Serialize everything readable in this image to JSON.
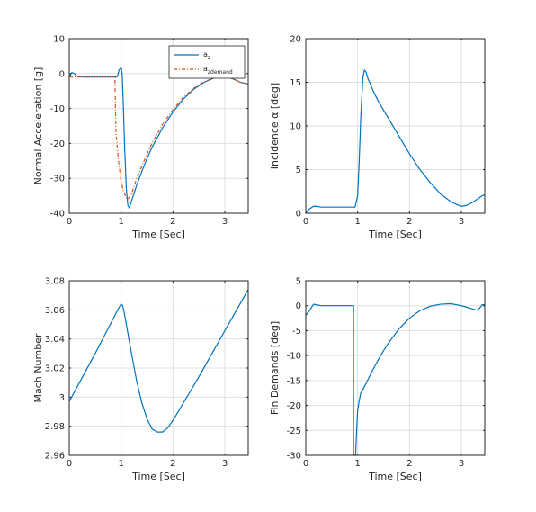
{
  "colors": {
    "series_blue": "#0072bd",
    "series_red": "#d95319"
  },
  "chart_data": [
    {
      "type": "line",
      "xlabel": "Time [Sec]",
      "ylabel": "Normal Acceleration [g]",
      "xlim": [
        0,
        3.45
      ],
      "ylim": [
        -40,
        10
      ],
      "xticks": [
        0,
        1,
        2,
        3
      ],
      "yticks": [
        10,
        0,
        -10,
        -20,
        -30,
        -40
      ],
      "grid": true,
      "legend": "top-right",
      "series": [
        {
          "name": "a",
          "name_sub": "z",
          "color": "#0072bd",
          "style": "solid",
          "x": [
            0,
            0.05,
            0.1,
            0.15,
            0.2,
            0.3,
            0.5,
            0.7,
            0.9,
            0.93,
            0.96,
            1.0,
            1.02,
            1.04,
            1.07,
            1.1,
            1.13,
            1.16,
            1.2,
            1.3,
            1.4,
            1.5,
            1.6,
            1.8,
            2.0,
            2.2,
            2.4,
            2.6,
            2.8,
            2.95,
            3.0,
            3.1,
            3.2,
            3.3,
            3.45
          ],
          "y": [
            -1,
            0.3,
            0,
            -0.7,
            -0.9,
            -1.0,
            -1.0,
            -1.0,
            -1.0,
            -0.8,
            1.0,
            1.7,
            0,
            -8,
            -22,
            -33,
            -37.8,
            -38.5,
            -36.5,
            -32.0,
            -28.0,
            -24.3,
            -21.0,
            -15.5,
            -11.0,
            -7.3,
            -4.5,
            -2.5,
            -1.2,
            -0.7,
            -0.7,
            -1.2,
            -1.8,
            -2.5,
            -3.0
          ]
        },
        {
          "name": "a",
          "name_sub": "zdemand",
          "color": "#d95319",
          "style": "dashdot",
          "x": [
            0,
            0.5,
            0.88,
            0.9,
            0.92,
            0.95,
            1.0,
            1.05,
            1.1,
            1.13,
            1.2,
            1.3,
            1.4,
            1.5,
            1.6,
            1.8,
            2.0,
            2.2,
            2.4,
            2.6,
            2.8,
            2.95,
            3.0,
            3.1,
            3.2,
            3.3,
            3.45
          ],
          "y": [
            -1,
            -1,
            -1,
            -17,
            -20,
            -25,
            -31,
            -34,
            -35.5,
            -36,
            -34.5,
            -30,
            -26.5,
            -23,
            -19.8,
            -14.5,
            -10.3,
            -6.8,
            -4.2,
            -2.3,
            -1.2,
            -0.8,
            -0.8,
            -1.2,
            -1.8,
            -2.5,
            -3.0
          ]
        }
      ]
    },
    {
      "type": "line",
      "xlabel": "Time [Sec]",
      "ylabel": "Incidence α [deg]",
      "xlim": [
        0,
        3.45
      ],
      "ylim": [
        0,
        20
      ],
      "xticks": [
        0,
        1,
        2,
        3
      ],
      "yticks": [
        0,
        5,
        10,
        15,
        20
      ],
      "grid": true,
      "series": [
        {
          "color": "#0072bd",
          "style": "solid",
          "x": [
            0,
            0.05,
            0.1,
            0.15,
            0.2,
            0.3,
            0.5,
            0.7,
            0.9,
            0.95,
            1.0,
            1.03,
            1.06,
            1.1,
            1.13,
            1.16,
            1.2,
            1.3,
            1.4,
            1.5,
            1.6,
            1.8,
            2.0,
            2.2,
            2.4,
            2.6,
            2.8,
            2.95,
            3.0,
            3.1,
            3.2,
            3.3,
            3.4,
            3.45
          ],
          "y": [
            0,
            0.4,
            0.6,
            0.8,
            0.8,
            0.7,
            0.7,
            0.7,
            0.7,
            0.7,
            2.0,
            6.0,
            11.0,
            15.5,
            16.4,
            16.2,
            15.4,
            14.0,
            12.8,
            11.8,
            10.8,
            8.8,
            6.8,
            5.0,
            3.5,
            2.2,
            1.3,
            0.9,
            0.8,
            0.9,
            1.2,
            1.6,
            2.0,
            2.1
          ]
        }
      ]
    },
    {
      "type": "line",
      "xlabel": "Time [Sec]",
      "ylabel": "Mach Number",
      "xlim": [
        0,
        3.45
      ],
      "ylim": [
        2.96,
        3.08
      ],
      "xticks": [
        0,
        1,
        2,
        3
      ],
      "yticks": [
        "3.08",
        "3.06",
        "3.04",
        "3.02",
        "3",
        "2.98",
        "2.96"
      ],
      "grid": true,
      "series": [
        {
          "color": "#0072bd",
          "style": "solid",
          "x": [
            0,
            0.5,
            0.95,
            1.0,
            1.03,
            1.06,
            1.1,
            1.2,
            1.3,
            1.4,
            1.5,
            1.6,
            1.7,
            1.8,
            1.9,
            2.0,
            2.2,
            2.5,
            2.8,
            3.1,
            3.45
          ],
          "y": [
            2.997,
            3.03,
            3.061,
            3.064,
            3.063,
            3.058,
            3.05,
            3.03,
            3.011,
            2.996,
            2.985,
            2.978,
            2.976,
            2.976,
            2.979,
            2.984,
            2.996,
            3.014,
            3.033,
            3.052,
            3.074
          ]
        }
      ]
    },
    {
      "type": "line",
      "xlabel": "Time [Sec]",
      "ylabel": "Fin Demands [deg]",
      "xlim": [
        0,
        3.45
      ],
      "ylim": [
        -30,
        5
      ],
      "xticks": [
        0,
        1,
        2,
        3
      ],
      "yticks": [
        5,
        0,
        -5,
        -10,
        -15,
        -20,
        -25,
        -30
      ],
      "grid": true,
      "series": [
        {
          "color": "#0072bd",
          "style": "solid",
          "x": [
            0,
            0.03,
            0.06,
            0.1,
            0.15,
            0.2,
            0.3,
            0.5,
            0.7,
            0.9,
            0.92,
            0.92,
            0.96,
            0.98,
            1.0,
            1.03,
            1.06,
            1.1,
            1.2,
            1.3,
            1.4,
            1.5,
            1.6,
            1.8,
            2.0,
            2.2,
            2.4,
            2.6,
            2.8,
            3.0,
            3.1,
            3.2,
            3.3,
            3.35,
            3.4,
            3.45
          ],
          "y": [
            -2.0,
            -1.5,
            -1.2,
            -0.5,
            0.3,
            0.2,
            0,
            0,
            0,
            0,
            0,
            -30,
            -30,
            -25,
            -21,
            -19,
            -17.5,
            -16.8,
            -14.8,
            -12.7,
            -10.8,
            -9.0,
            -7.4,
            -4.6,
            -2.5,
            -1.0,
            -0.1,
            0.3,
            0.4,
            0,
            -0.3,
            -0.6,
            -0.9,
            -0.5,
            0.2,
            0.2
          ]
        }
      ]
    }
  ]
}
